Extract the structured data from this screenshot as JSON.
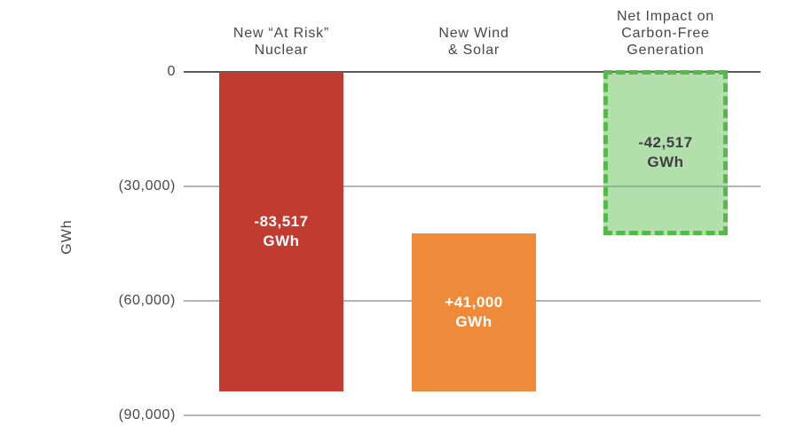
{
  "chart_data": {
    "type": "bar",
    "variant": "waterfall",
    "title": "",
    "xlabel": "",
    "ylabel": "GWh",
    "ylim": [
      -90000,
      0
    ],
    "grid": true,
    "legend": false,
    "yticks": [
      {
        "value": 0,
        "label": "0"
      },
      {
        "value": -30000,
        "label": "(30,000)"
      },
      {
        "value": -60000,
        "label": "(60,000)"
      },
      {
        "value": -90000,
        "label": "(90,000)"
      }
    ],
    "columns": [
      {
        "category": "New “At Risk” Nuclear",
        "title_lines": [
          "New “At Risk”",
          "Nuclear"
        ],
        "change": -83517,
        "bar_start": 0,
        "bar_end": -83517,
        "label_value": "-83,517",
        "label_unit": "GWh",
        "color": "#c23b31",
        "label_color": "#ffffff",
        "style": "solid"
      },
      {
        "category": "New Wind & Solar",
        "title_lines": [
          "New Wind",
          "& Solar"
        ],
        "change": 41000,
        "bar_start": -83517,
        "bar_end": -42517,
        "label_value": "+41,000",
        "label_unit": "GWh",
        "color": "#ee8a39",
        "label_color": "#ffffff",
        "style": "solid"
      },
      {
        "category": "Net Impact on Carbon-Free Generation",
        "title_lines": [
          "Net Impact on",
          "Carbon-Free",
          "Generation"
        ],
        "change": -42517,
        "bar_start": 0,
        "bar_end": -42517,
        "label_value": "-42,517",
        "label_unit": "GWh",
        "color": "#aedca4",
        "border_color": "#54b948",
        "label_color": "#3f3f41",
        "style": "dashed"
      }
    ],
    "axis_colors": {
      "zero_line": "#59595b",
      "gridline": "#b4b4b6",
      "text": "#47474a"
    }
  }
}
